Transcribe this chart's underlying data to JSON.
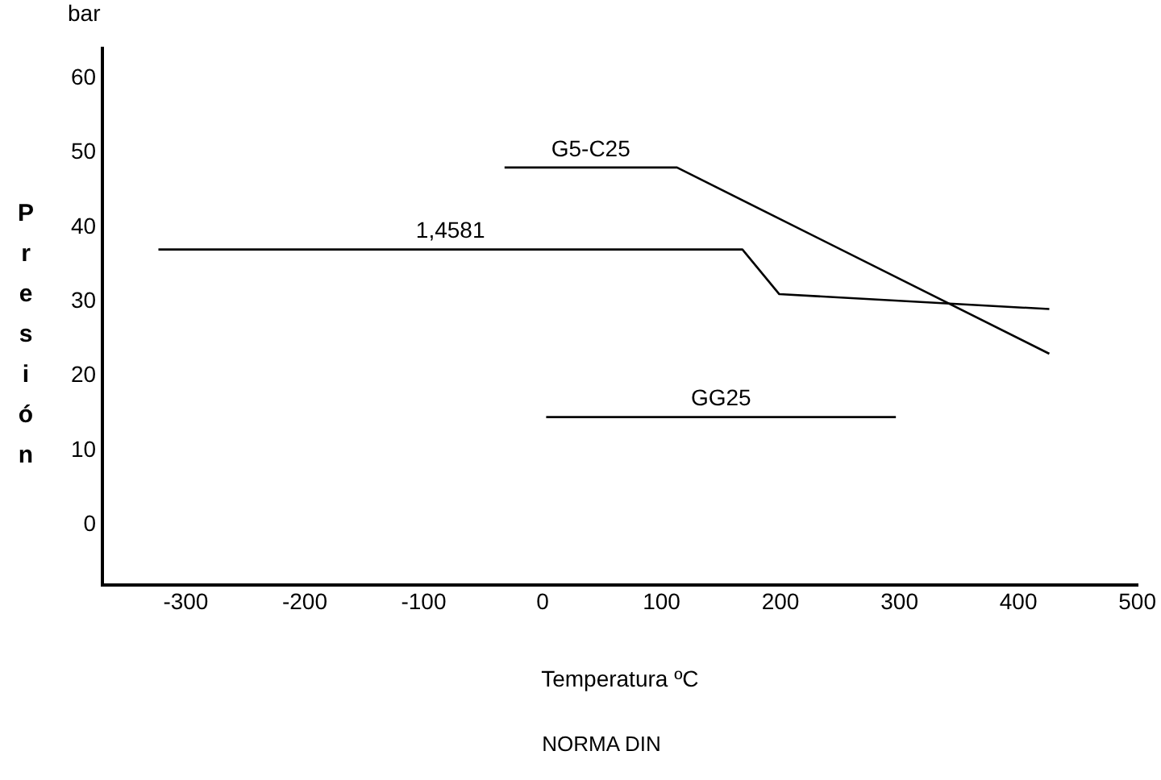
{
  "chart_data": {
    "type": "line",
    "title": "NORMA DIN",
    "xlabel": "Temperatura ºC",
    "ylabel": "Presión",
    "annotations": [
      "bar"
    ],
    "xlim": [
      -370,
      500
    ],
    "xticks": [
      -300,
      -200,
      -100,
      0,
      100,
      200,
      300,
      400,
      500
    ],
    "ylim": [
      -8,
      64
    ],
    "yticks": [
      0,
      10,
      20,
      30,
      40,
      50,
      60
    ],
    "grid": false,
    "legend": false,
    "marker": "none",
    "line_style": "solid",
    "series": [
      {
        "name": "1,4581",
        "color": "#000000",
        "x": [
          -323,
          168,
          199,
          426
        ],
        "values": [
          37,
          37,
          31,
          29
        ]
      },
      {
        "name": "G5-C25",
        "color": "#000000",
        "x": [
          -32,
          113,
          426
        ],
        "values": [
          48,
          48,
          23
        ]
      },
      {
        "name": "GG25",
        "color": "#000000",
        "x": [
          3,
          297
        ],
        "values": [
          14.5,
          14.5
        ]
      }
    ]
  }
}
